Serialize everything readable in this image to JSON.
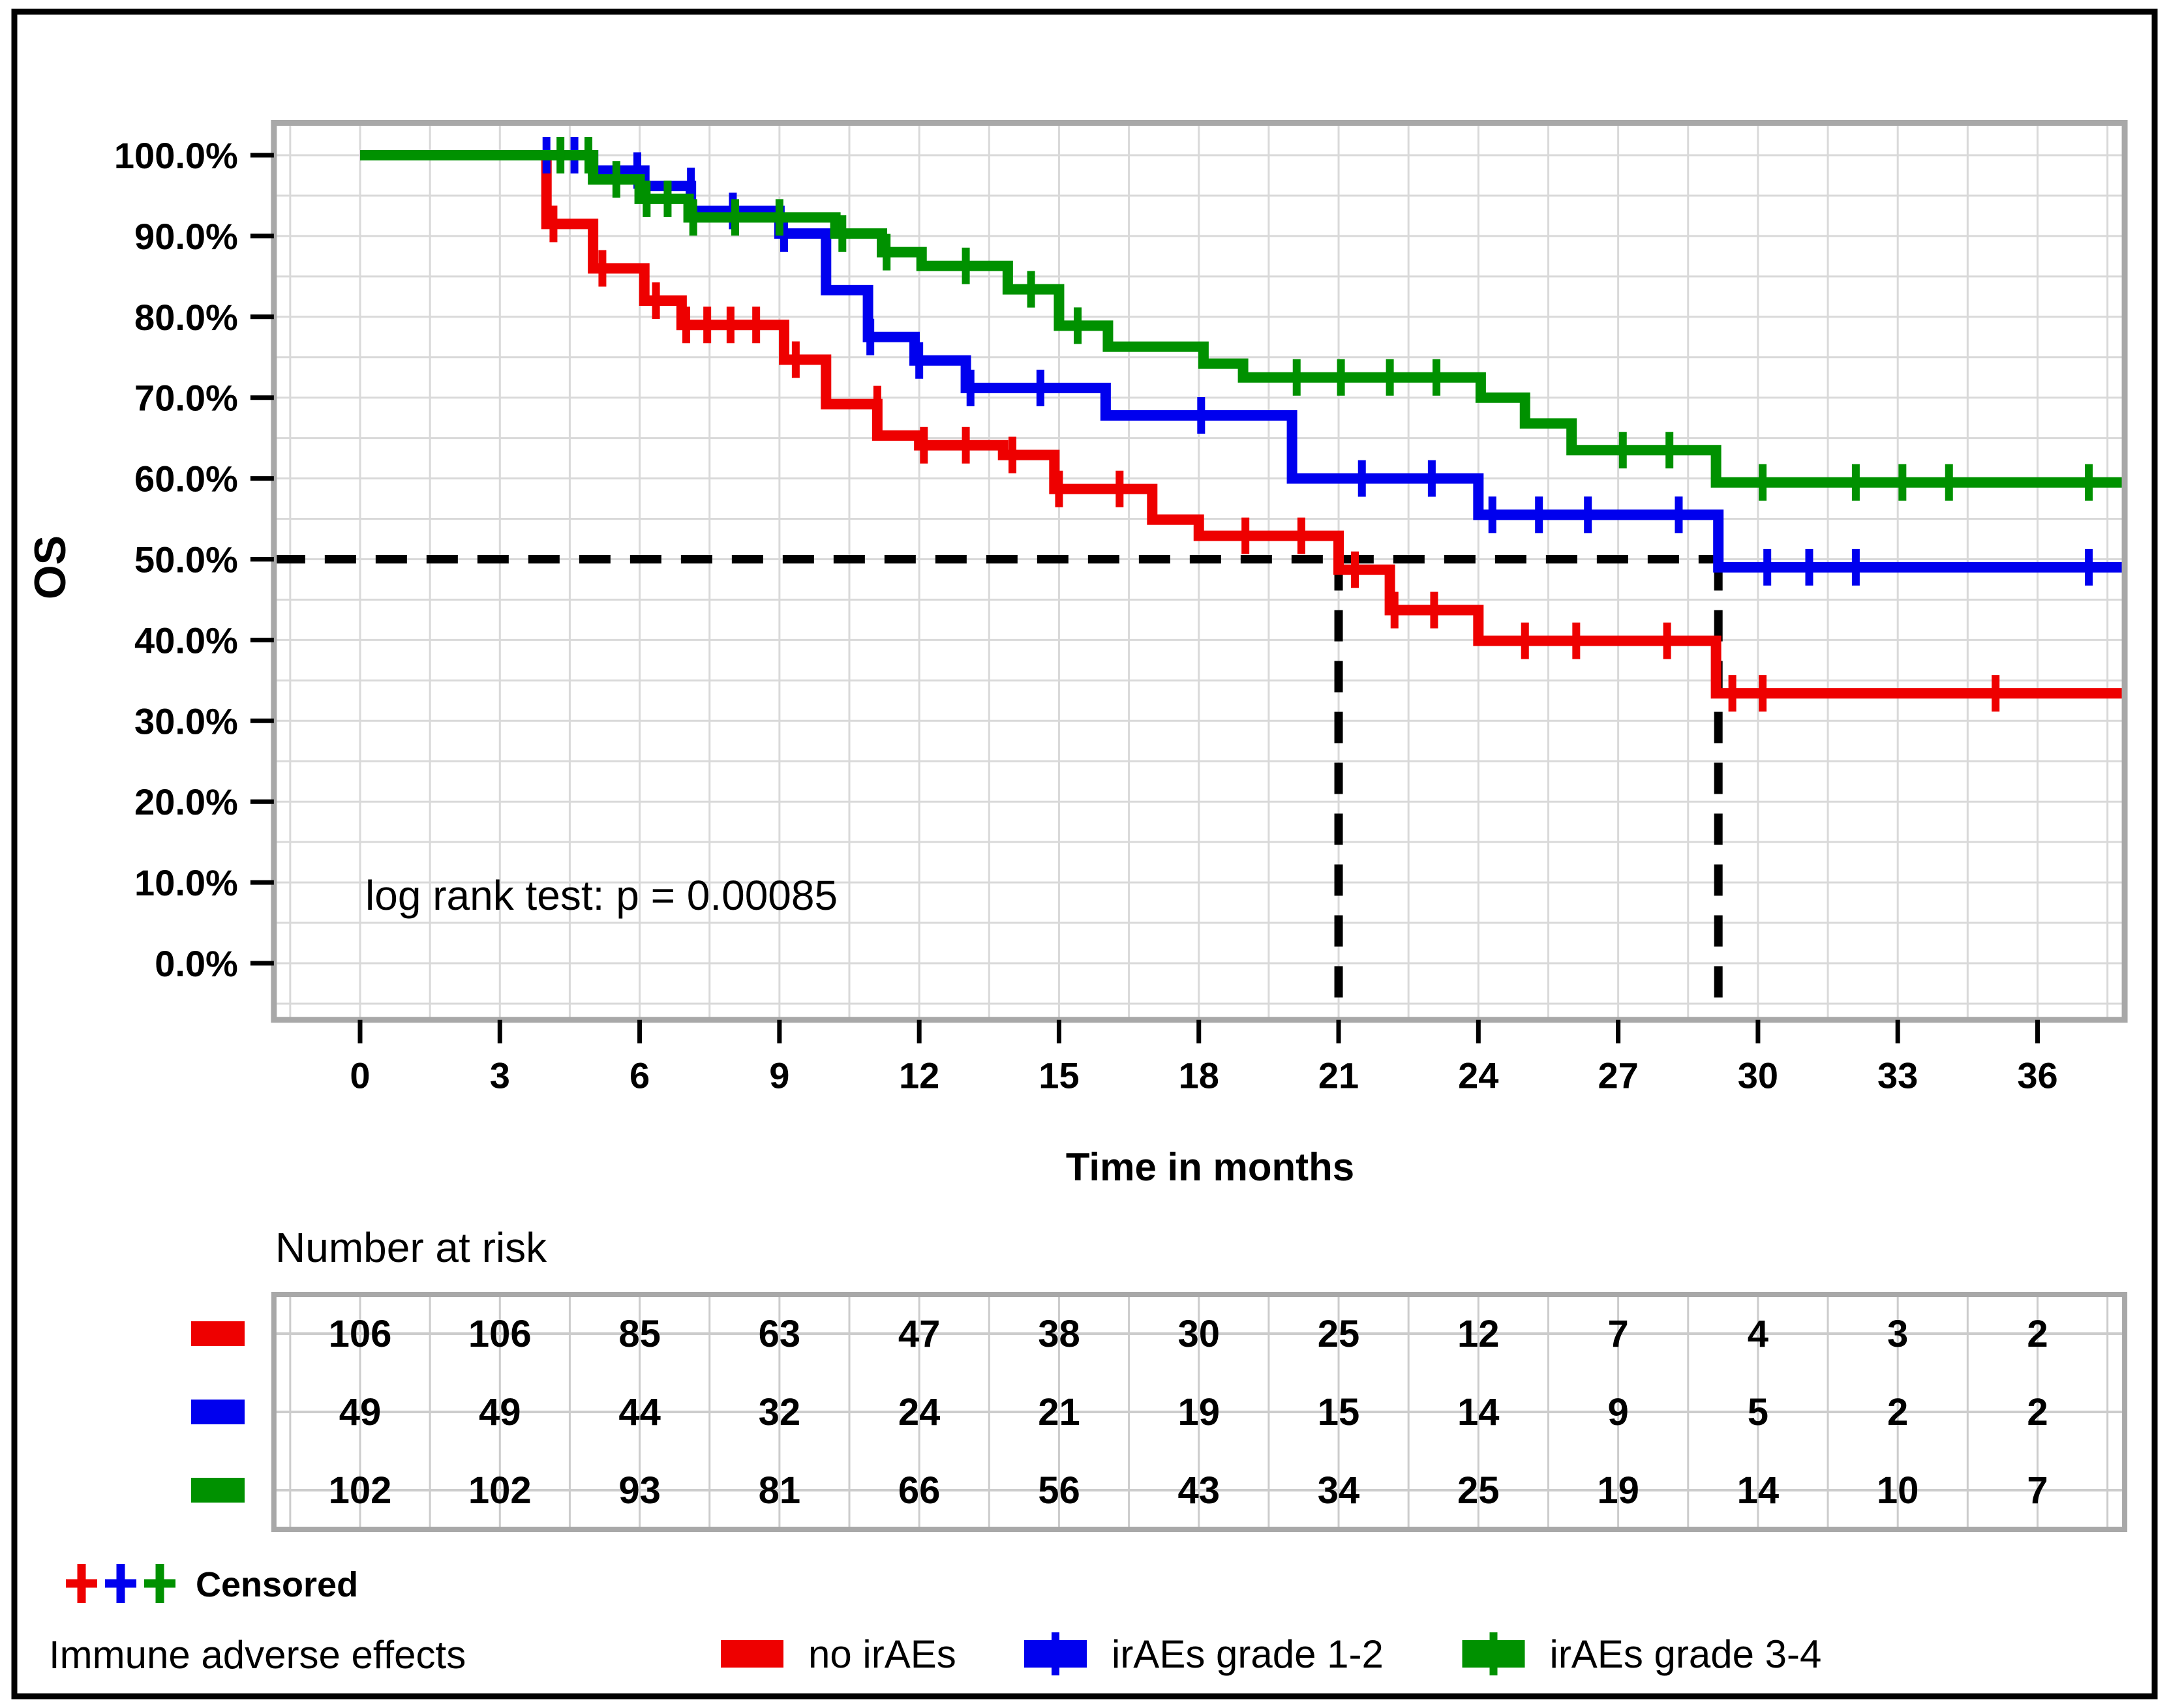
{
  "figure": {
    "y_axis_title": "OS",
    "x_axis_title": "Time in months",
    "annotation": "log rank test: p = 0.00085",
    "risk_table_title": "Number at risk",
    "censored_label": "Censored",
    "legend_title": "Immune adverse effects"
  },
  "colors": {
    "red": "#ee0000",
    "blue": "#0000ee",
    "green": "#009100",
    "grid": "#d9d9d9",
    "table_grid": "#cccccc",
    "plot_border": "#a8a8a8",
    "dash": "#000000",
    "text": "#000000"
  },
  "chart_data": {
    "type": "line",
    "subtype": "kaplan-meier-step",
    "title": "",
    "xlabel": "Time in months",
    "ylabel": "OS",
    "annotation": "log rank test: p = 0.00085",
    "xlim": [
      -1.85,
      37.87
    ],
    "ylim": [
      -7,
      104
    ],
    "x_ticks": [
      0,
      3,
      6,
      9,
      12,
      15,
      18,
      21,
      24,
      27,
      30,
      33,
      36
    ],
    "x_tick_labels": [
      "0",
      "3",
      "6",
      "9",
      "12",
      "15",
      "18",
      "21",
      "24",
      "27",
      "30",
      "33",
      "36"
    ],
    "y_ticks": [
      100,
      90,
      80,
      70,
      60,
      50,
      40,
      30,
      20,
      10,
      0
    ],
    "y_tick_labels": [
      "100.0%",
      "90.0%",
      "80.0%",
      "70.0%",
      "60.0%",
      "50.0%",
      "40.0%",
      "30.0%",
      "20.0%",
      "10.0%",
      "0.0%"
    ],
    "grid": {
      "x_step": 1.5,
      "y_step": 5,
      "grid_on": true
    },
    "reference_lines": {
      "y": 50,
      "x_drops": [
        21,
        29.15
      ]
    },
    "x_end": 37.87,
    "series": [
      {
        "name": "no irAEs",
        "color_key": "red",
        "steps": [
          [
            0,
            100
          ],
          [
            4,
            91.5
          ],
          [
            5,
            86
          ],
          [
            6.1,
            82
          ],
          [
            6.9,
            79
          ],
          [
            9.1,
            74.7
          ],
          [
            10,
            69.2
          ],
          [
            11.1,
            65.3
          ],
          [
            12,
            64.1
          ],
          [
            13.8,
            62.9
          ],
          [
            14.9,
            58.7
          ],
          [
            17,
            54.9
          ],
          [
            18,
            52.9
          ],
          [
            21,
            48.7
          ],
          [
            22.1,
            43.7
          ],
          [
            24,
            39.9
          ],
          [
            29.1,
            33.4
          ]
        ],
        "censors": [
          [
            4.15,
            91.5
          ],
          [
            5.2,
            86
          ],
          [
            6.35,
            82
          ],
          [
            7.0,
            79
          ],
          [
            7.45,
            79
          ],
          [
            7.95,
            79
          ],
          [
            8.5,
            79
          ],
          [
            9.35,
            74.7
          ],
          [
            11.1,
            69.2
          ],
          [
            12.1,
            64.1
          ],
          [
            13.0,
            64.1
          ],
          [
            14.0,
            62.9
          ],
          [
            15.0,
            58.7
          ],
          [
            16.3,
            58.7
          ],
          [
            19.0,
            52.9
          ],
          [
            20.2,
            52.9
          ],
          [
            21.35,
            48.7
          ],
          [
            22.2,
            43.7
          ],
          [
            23.05,
            43.7
          ],
          [
            25.0,
            39.9
          ],
          [
            26.1,
            39.9
          ],
          [
            28.05,
            39.9
          ],
          [
            29.45,
            33.4
          ],
          [
            30.1,
            33.4
          ],
          [
            35.1,
            33.4
          ]
        ]
      },
      {
        "name": "irAEs grade 1-2",
        "color_key": "blue",
        "steps": [
          [
            0,
            100
          ],
          [
            5,
            98.1
          ],
          [
            6.1,
            96.2
          ],
          [
            7.1,
            93.1
          ],
          [
            9,
            90.3
          ],
          [
            10,
            83.3
          ],
          [
            10.9,
            77.5
          ],
          [
            11.9,
            74.6
          ],
          [
            13,
            71.2
          ],
          [
            16,
            67.8
          ],
          [
            20,
            60
          ],
          [
            24,
            55.5
          ],
          [
            29.15,
            49
          ]
        ],
        "censors": [
          [
            4.0,
            100
          ],
          [
            4.6,
            100
          ],
          [
            5.95,
            98.1
          ],
          [
            7.1,
            96.2
          ],
          [
            8.0,
            93.1
          ],
          [
            9.1,
            90.3
          ],
          [
            10.95,
            77.5
          ],
          [
            12.0,
            74.6
          ],
          [
            13.1,
            71.2
          ],
          [
            14.6,
            71.2
          ],
          [
            18.05,
            67.8
          ],
          [
            21.5,
            60
          ],
          [
            23.0,
            60
          ],
          [
            24.3,
            55.5
          ],
          [
            25.3,
            55.5
          ],
          [
            26.35,
            55.5
          ],
          [
            28.3,
            55.5
          ],
          [
            30.2,
            49
          ],
          [
            31.1,
            49
          ],
          [
            32.1,
            49
          ],
          [
            37.1,
            49
          ]
        ]
      },
      {
        "name": "irAEs grade 3-4",
        "color_key": "green",
        "steps": [
          [
            0,
            100
          ],
          [
            5,
            97
          ],
          [
            6,
            94.6
          ],
          [
            7.05,
            92.3
          ],
          [
            10.2,
            90.3
          ],
          [
            11.2,
            88
          ],
          [
            12.05,
            86.3
          ],
          [
            13.9,
            83.4
          ],
          [
            15,
            78.9
          ],
          [
            16.05,
            76.3
          ],
          [
            18.1,
            74.2
          ],
          [
            18.95,
            72.5
          ],
          [
            24.05,
            70
          ],
          [
            25,
            66.8
          ],
          [
            26,
            63.5
          ],
          [
            29.1,
            59.5
          ]
        ],
        "censors": [
          [
            4.3,
            100
          ],
          [
            4.9,
            100
          ],
          [
            5.5,
            97
          ],
          [
            6.15,
            94.6
          ],
          [
            6.6,
            94.6
          ],
          [
            7.15,
            92.3
          ],
          [
            8.05,
            92.3
          ],
          [
            9.0,
            92.3
          ],
          [
            10.35,
            90.3
          ],
          [
            11.3,
            88
          ],
          [
            13.0,
            86.3
          ],
          [
            14.4,
            83.4
          ],
          [
            15.4,
            78.9
          ],
          [
            20.1,
            72.5
          ],
          [
            21.05,
            72.5
          ],
          [
            22.1,
            72.5
          ],
          [
            23.1,
            72.5
          ],
          [
            27.1,
            63.5
          ],
          [
            28.1,
            63.5
          ],
          [
            30.1,
            59.5
          ],
          [
            32.1,
            59.5
          ],
          [
            33.1,
            59.5
          ],
          [
            34.1,
            59.5
          ],
          [
            37.1,
            59.5
          ]
        ]
      }
    ],
    "risk_table": {
      "title": "Number at risk",
      "times": [
        0,
        3,
        6,
        9,
        12,
        15,
        18,
        21,
        24,
        27,
        30,
        33,
        36
      ],
      "rows": [
        {
          "name": "no irAEs",
          "color_key": "red",
          "values": [
            106,
            106,
            85,
            63,
            47,
            38,
            30,
            25,
            12,
            7,
            4,
            3,
            2
          ]
        },
        {
          "name": "irAEs grade 1-2",
          "color_key": "blue",
          "values": [
            49,
            49,
            44,
            32,
            24,
            21,
            19,
            15,
            14,
            9,
            5,
            2,
            2
          ]
        },
        {
          "name": "irAEs grade 3-4",
          "color_key": "green",
          "values": [
            102,
            102,
            93,
            81,
            66,
            56,
            43,
            34,
            25,
            19,
            14,
            10,
            7
          ]
        }
      ]
    },
    "legend": [
      {
        "label": "no irAEs",
        "color_key": "red",
        "censor_tick": false
      },
      {
        "label": "irAEs grade 1-2",
        "color_key": "blue",
        "censor_tick": true
      },
      {
        "label": "irAEs grade 3-4",
        "color_key": "green",
        "censor_tick": true
      }
    ],
    "censored_marker_color_keys": [
      "red",
      "blue",
      "green"
    ],
    "legend_position": "bottom"
  }
}
